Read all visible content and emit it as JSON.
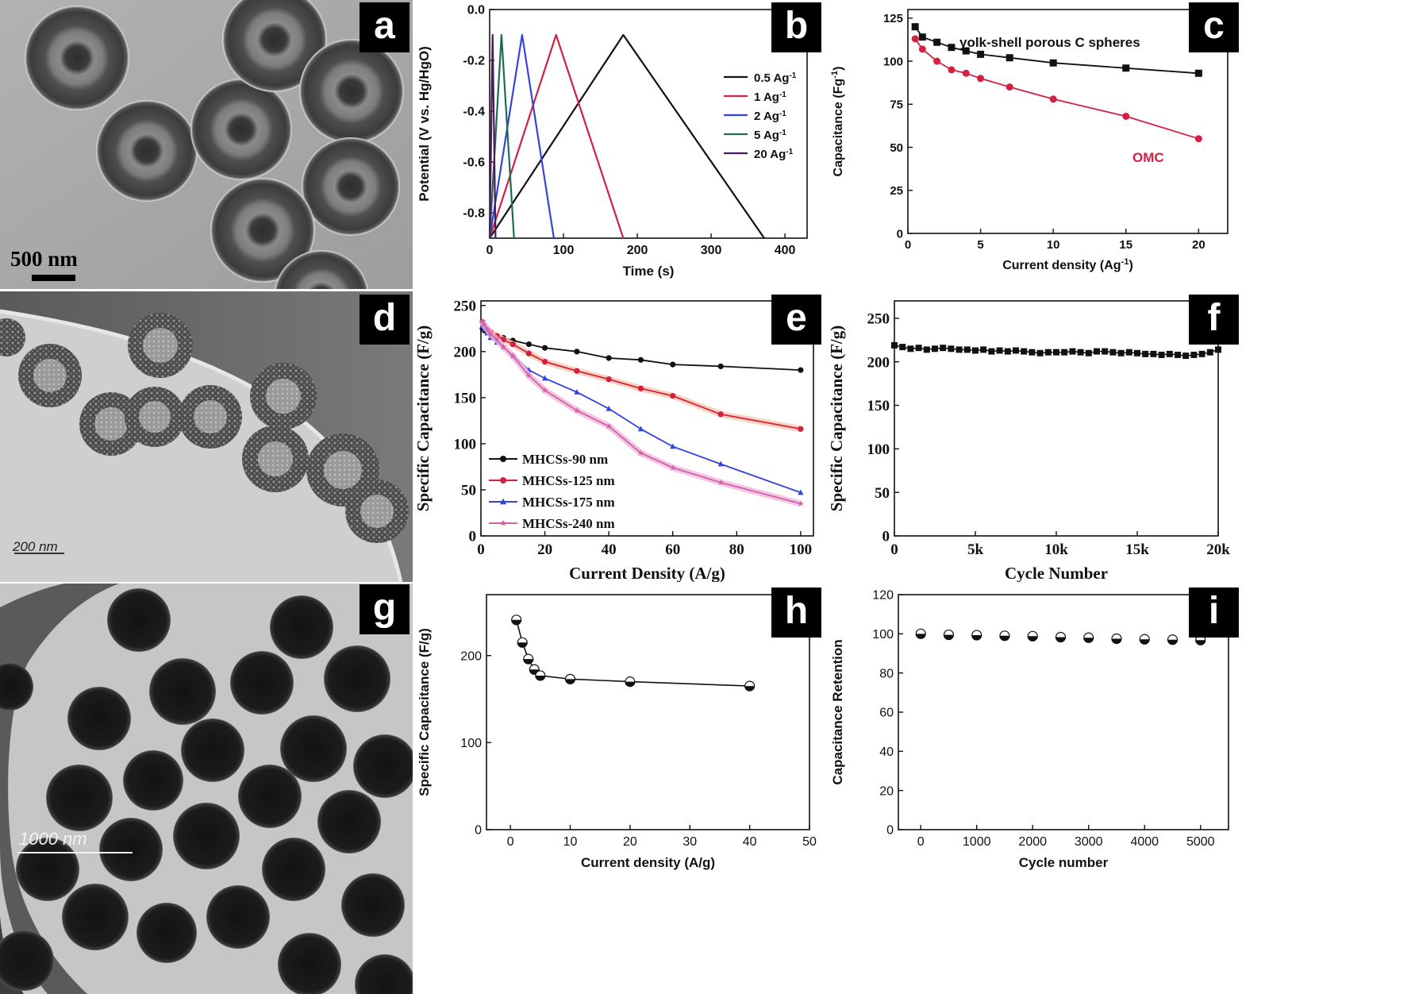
{
  "panel_letters": {
    "a": "a",
    "b": "b",
    "c": "c",
    "d": "d",
    "e": "e",
    "f": "f",
    "g": "g",
    "h": "h",
    "i": "i"
  },
  "micrographs": {
    "a": {
      "scale_label": "500 nm"
    },
    "d": {
      "scale_label": "200 nm"
    },
    "g": {
      "scale_label": "1000 nm"
    }
  },
  "colors": {
    "black": "#111111",
    "red": "#d42040",
    "blue": "#3344dd",
    "teal": "#1e6b55",
    "purple": "#4a1a5a",
    "pink": "#d060a8",
    "red_glow": "#f8c7b0",
    "pink_glow": "#f3b8dd"
  },
  "chart_data": [
    {
      "panel": "b",
      "type": "line",
      "xlabel": "Time (s)",
      "ylabel": "Potential (V vs. Hg/HgO)",
      "xlim": [
        0,
        430
      ],
      "ylim": [
        -0.9,
        0.0
      ],
      "xticks": [
        0,
        100,
        200,
        300,
        400
      ],
      "yticks": [
        0.0,
        -0.2,
        -0.4,
        -0.6,
        -0.8
      ],
      "ytick_labels": [
        "0.0",
        "-0.2",
        "-0.4",
        "-0.6",
        "-0.8"
      ],
      "legend_position": "right",
      "series": [
        {
          "name": "0.5 Ag",
          "sup": "-1",
          "color": "#111111",
          "x": [
            0,
            181,
            372
          ],
          "y": [
            -0.9,
            -0.1,
            -0.9
          ]
        },
        {
          "name": "1 Ag",
          "sup": "-1",
          "color": "#d42040",
          "x": [
            0,
            90,
            181
          ],
          "y": [
            -0.9,
            -0.1,
            -0.9
          ]
        },
        {
          "name": "2 Ag",
          "sup": "-1",
          "color": "#3344dd",
          "x": [
            0,
            44,
            87
          ],
          "y": [
            -0.9,
            -0.1,
            -0.9
          ]
        },
        {
          "name": "5 Ag",
          "sup": "-1",
          "color": "#1e6b55",
          "x": [
            0,
            16,
            33
          ],
          "y": [
            -0.9,
            -0.1,
            -0.9
          ]
        },
        {
          "name": "20 Ag",
          "sup": "-1",
          "color": "#4a1a5a",
          "x": [
            0,
            4,
            8
          ],
          "y": [
            -0.9,
            -0.1,
            -0.9
          ]
        }
      ]
    },
    {
      "panel": "c",
      "type": "line",
      "xlabel": "Current density (Ag",
      "xlabel_sup": "-1",
      "xlabel_end": ")",
      "ylabel": "Capacitance (Fg",
      "ylabel_sup": "-1",
      "ylabel_end": ")",
      "xlim": [
        0,
        22
      ],
      "ylim": [
        0,
        130
      ],
      "xticks": [
        0,
        5,
        10,
        15,
        20
      ],
      "yticks": [
        0,
        25,
        50,
        75,
        100,
        125
      ],
      "series": [
        {
          "name": "yolk-shell porous C spheres",
          "color": "#111111",
          "marker": "square",
          "x": [
            0.5,
            1,
            2,
            3,
            4,
            5,
            7,
            10,
            15,
            20
          ],
          "y": [
            120,
            114,
            111,
            108,
            106,
            104,
            102,
            99,
            96,
            93
          ]
        },
        {
          "name": "OMC",
          "color": "#d42040",
          "marker": "circle",
          "x": [
            0.5,
            1,
            2,
            3,
            4,
            5,
            7,
            10,
            15,
            20
          ],
          "y": [
            113,
            107,
            100,
            95,
            93,
            90,
            85,
            78,
            68,
            55
          ]
        }
      ]
    },
    {
      "panel": "e",
      "type": "line",
      "xlabel": "Current Density (A/g)",
      "ylabel": "Specific Capacitance (F/g)",
      "xlim": [
        0,
        104
      ],
      "ylim": [
        0,
        255
      ],
      "xticks": [
        0,
        20,
        40,
        60,
        80,
        100
      ],
      "yticks": [
        0,
        50,
        100,
        150,
        200,
        250
      ],
      "legend_position": "lower-left",
      "series": [
        {
          "name": "MHCSs-90 nm",
          "color": "#111111",
          "marker": "circle",
          "x": [
            0.5,
            1,
            2,
            3,
            5,
            7,
            10,
            15,
            20,
            30,
            40,
            50,
            60,
            75,
            100
          ],
          "y": [
            225,
            223,
            221,
            219,
            217,
            215,
            212,
            208,
            204,
            200,
            193,
            191,
            186,
            184,
            180
          ]
        },
        {
          "name": "MHCSs-125 nm",
          "color": "#d42040",
          "marker": "circle",
          "glow": "#f8c7b0",
          "x": [
            0.5,
            1,
            2,
            3,
            5,
            7,
            10,
            15,
            20,
            30,
            40,
            50,
            60,
            75,
            100
          ],
          "y": [
            232,
            228,
            224,
            221,
            217,
            213,
            208,
            198,
            189,
            179,
            170,
            160,
            152,
            132,
            116
          ]
        },
        {
          "name": "MHCSs-175 nm",
          "color": "#3344dd",
          "marker": "triangle",
          "x": [
            0.5,
            1,
            2,
            3,
            5,
            7,
            10,
            15,
            20,
            30,
            40,
            50,
            60,
            75,
            100
          ],
          "y": [
            228,
            224,
            220,
            215,
            210,
            205,
            196,
            180,
            171,
            156,
            138,
            116,
            97,
            78,
            47
          ]
        },
        {
          "name": "MHCSs-240 nm",
          "color": "#d060a8",
          "marker": "star",
          "glow": "#f3b8dd",
          "x": [
            0.5,
            1,
            2,
            3,
            5,
            7,
            10,
            15,
            20,
            30,
            40,
            50,
            60,
            75,
            100
          ],
          "y": [
            233,
            229,
            224,
            219,
            213,
            205,
            195,
            174,
            158,
            136,
            119,
            90,
            74,
            58,
            35
          ]
        }
      ]
    },
    {
      "panel": "f",
      "type": "scatter",
      "xlabel": "Cycle Number",
      "ylabel": "Specific Capacitance (F/g)",
      "xlim": [
        0,
        20000
      ],
      "ylim": [
        0,
        270
      ],
      "xticks": [
        0,
        5000,
        10000,
        15000,
        20000
      ],
      "xtick_labels": [
        "0",
        "5k",
        "10k",
        "15k",
        "20k"
      ],
      "yticks": [
        0,
        50,
        100,
        150,
        200,
        250
      ],
      "series": [
        {
          "name": "",
          "color": "#111111",
          "marker": "square",
          "x": [
            0,
            500,
            1000,
            1500,
            2000,
            2500,
            3000,
            3500,
            4000,
            4500,
            5000,
            5500,
            6000,
            6500,
            7000,
            7500,
            8000,
            8500,
            9000,
            9500,
            10000,
            10500,
            11000,
            11500,
            12000,
            12500,
            13000,
            13500,
            14000,
            14500,
            15000,
            15500,
            16000,
            16500,
            17000,
            17500,
            18000,
            18500,
            19000,
            19500,
            20000
          ],
          "y": [
            219,
            217,
            215,
            216,
            214,
            215,
            216,
            215,
            214,
            214,
            213,
            214,
            212,
            213,
            212,
            213,
            212,
            211,
            210,
            211,
            211,
            211,
            212,
            211,
            210,
            212,
            212,
            211,
            210,
            211,
            210,
            209,
            209,
            208,
            209,
            208,
            207,
            208,
            209,
            211,
            214
          ]
        }
      ]
    },
    {
      "panel": "h",
      "type": "line",
      "xlabel": "Current density (A/g)",
      "ylabel": "Specific Capacitance (F/g)",
      "xlim": [
        -4,
        50
      ],
      "ylim": [
        0,
        270
      ],
      "xticks": [
        0,
        10,
        20,
        30,
        40,
        50
      ],
      "yticks": [
        0,
        100,
        200
      ],
      "series": [
        {
          "name": "",
          "color": "#111111",
          "marker": "half-circle",
          "x": [
            1,
            2,
            3,
            4,
            5,
            10,
            20,
            40
          ],
          "y": [
            241,
            215,
            196,
            184,
            177,
            173,
            170,
            165
          ]
        }
      ]
    },
    {
      "panel": "i",
      "type": "scatter",
      "xlabel": "Cycle number",
      "ylabel": "Capacitance Retention",
      "xlim": [
        -400,
        5500
      ],
      "ylim": [
        0,
        120
      ],
      "xticks": [
        0,
        1000,
        2000,
        3000,
        4000,
        5000
      ],
      "yticks": [
        0,
        20,
        40,
        60,
        80,
        100,
        120
      ],
      "series": [
        {
          "name": "",
          "color": "#111111",
          "marker": "half-circle",
          "x": [
            0,
            500,
            1000,
            1500,
            2000,
            2500,
            3000,
            3500,
            4000,
            4500,
            5000
          ],
          "y": [
            100,
            99.5,
            99.3,
            99,
            98.8,
            98.3,
            98,
            97.5,
            97.2,
            97,
            96.8
          ]
        }
      ]
    }
  ]
}
